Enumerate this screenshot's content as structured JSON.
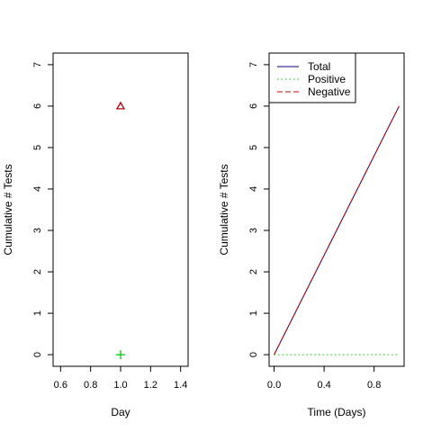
{
  "chart_data": [
    {
      "type": "scatter",
      "title": "",
      "xlabel": "Day",
      "ylabel": "Cumulative # Tests",
      "xlim": [
        0.55,
        1.45
      ],
      "ylim": [
        -0.28,
        7.28
      ],
      "x_ticks": [
        "0.6",
        "0.8",
        "1.0",
        "1.2",
        "1.4"
      ],
      "y_ticks": [
        "0",
        "1",
        "2",
        "3",
        "4",
        "5",
        "6",
        "7"
      ],
      "grid": false,
      "series": [
        {
          "marker": "triangle",
          "color": "#000080",
          "points": [
            {
              "x": 1.0,
              "y": 6
            }
          ]
        },
        {
          "marker": "triangle",
          "color": "#cc0000",
          "points": [
            {
              "x": 1.0,
              "y": 6
            }
          ]
        },
        {
          "marker": "plus",
          "color": "#00cc00",
          "points": [
            {
              "x": 1.0,
              "y": 0
            }
          ]
        }
      ]
    },
    {
      "type": "line",
      "title": "",
      "xlabel": "Time (Days)",
      "ylabel": "Cumulative # Tests",
      "xlim": [
        -0.04,
        1.04
      ],
      "ylim": [
        -0.28,
        7.28
      ],
      "x_ticks": [
        "0.0",
        "0.4",
        "0.8"
      ],
      "y_ticks": [
        "0",
        "1",
        "2",
        "3",
        "4",
        "5",
        "6",
        "7"
      ],
      "grid": false,
      "legend_position": "top-left",
      "series": [
        {
          "name": "Total",
          "color": "#000080",
          "dash": "solid",
          "x": [
            0,
            1
          ],
          "y": [
            0,
            6
          ]
        },
        {
          "name": "Positive",
          "color": "#00cc00",
          "dash": "dotted",
          "x": [
            0,
            1
          ],
          "y": [
            0,
            0
          ]
        },
        {
          "name": "Negative",
          "color": "#cc0000",
          "dash": "dashed",
          "x": [
            0,
            1
          ],
          "y": [
            0,
            6
          ]
        }
      ]
    }
  ]
}
